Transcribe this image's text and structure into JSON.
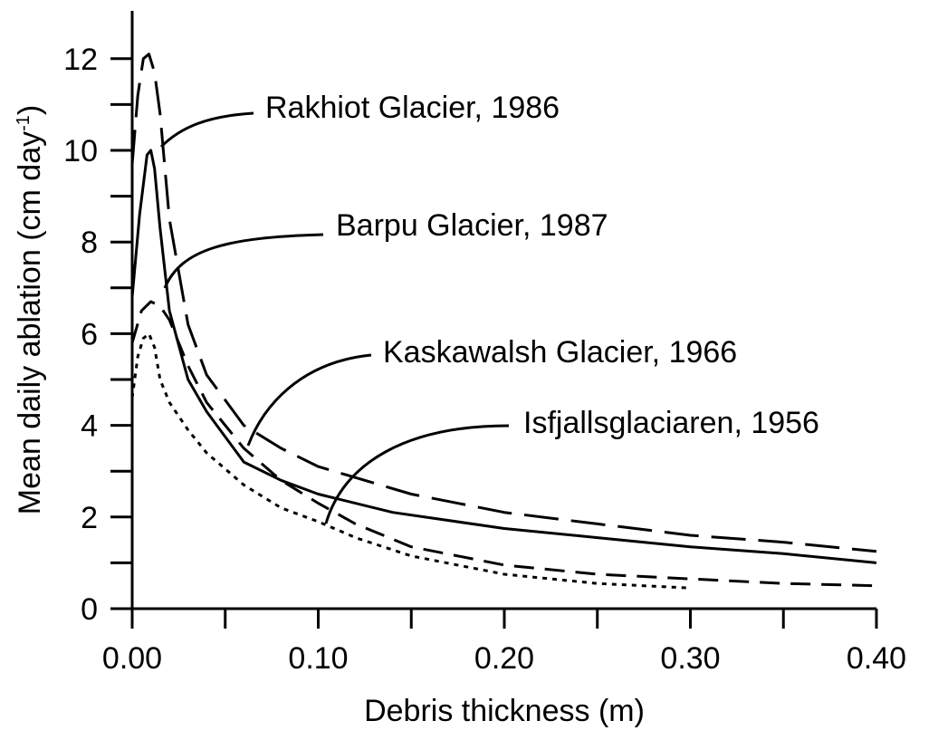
{
  "chart_data": {
    "type": "line",
    "xlabel": "Debris thickness (m)",
    "ylabel": "Mean daily ablation (cm day",
    "ylabel_sup": "-1",
    "ylabel_close": ")",
    "xlim": [
      0,
      0.4
    ],
    "ylim": [
      0,
      12.5
    ],
    "x_ticks": [
      0.0,
      0.1,
      0.2,
      0.3,
      0.4
    ],
    "x_tick_labels": [
      "0.00",
      "0.10",
      "0.20",
      "0.30",
      "0.40"
    ],
    "x_minor_ticks": [
      0.05,
      0.15,
      0.25,
      0.35
    ],
    "y_ticks": [
      0,
      2,
      4,
      6,
      8,
      10,
      12
    ],
    "y_tick_labels": [
      "0",
      "2",
      "4",
      "6",
      "8",
      "10",
      "12"
    ],
    "grid": false,
    "legend": "none",
    "series": [
      {
        "name": "Rakhiot Glacier, 1986",
        "style": "long-dash",
        "x": [
          0.0,
          0.003,
          0.006,
          0.009,
          0.012,
          0.015,
          0.02,
          0.03,
          0.04,
          0.06,
          0.08,
          0.1,
          0.15,
          0.2,
          0.25,
          0.3,
          0.35,
          0.4
        ],
        "y": [
          9.7,
          11.2,
          12.0,
          12.1,
          11.7,
          10.8,
          8.5,
          6.2,
          5.1,
          4.0,
          3.5,
          3.1,
          2.5,
          2.1,
          1.85,
          1.6,
          1.45,
          1.25
        ]
      },
      {
        "name": "Barpu Glacier, 1987",
        "style": "solid",
        "x": [
          0.0,
          0.004,
          0.008,
          0.01,
          0.012,
          0.015,
          0.02,
          0.03,
          0.04,
          0.06,
          0.08,
          0.1,
          0.14,
          0.2,
          0.25,
          0.3,
          0.35,
          0.4
        ],
        "y": [
          6.8,
          8.6,
          9.9,
          10.0,
          9.6,
          8.3,
          6.5,
          5.0,
          4.3,
          3.2,
          2.8,
          2.5,
          2.1,
          1.75,
          1.55,
          1.35,
          1.2,
          1.0
        ]
      },
      {
        "name": "Kaskawalsh Glacier, 1966",
        "style": "medium-dash",
        "x": [
          0.0,
          0.005,
          0.01,
          0.015,
          0.02,
          0.03,
          0.04,
          0.06,
          0.08,
          0.1,
          0.12,
          0.15,
          0.2,
          0.25,
          0.3,
          0.35,
          0.4
        ],
        "y": [
          5.8,
          6.5,
          6.7,
          6.6,
          6.3,
          5.3,
          4.5,
          3.5,
          2.8,
          2.3,
          1.85,
          1.35,
          0.95,
          0.75,
          0.65,
          0.55,
          0.5
        ]
      },
      {
        "name": "Isfjallsglaciaren, 1956",
        "style": "dotted",
        "x": [
          0.0,
          0.003,
          0.006,
          0.009,
          0.012,
          0.015,
          0.02,
          0.03,
          0.04,
          0.06,
          0.08,
          0.1,
          0.12,
          0.15,
          0.2,
          0.25,
          0.3
        ],
        "y": [
          4.6,
          5.5,
          5.9,
          6.0,
          5.7,
          5.0,
          4.5,
          3.9,
          3.4,
          2.7,
          2.2,
          1.9,
          1.55,
          1.15,
          0.75,
          0.55,
          0.45
        ]
      }
    ],
    "annotations": [
      {
        "text": "Rakhiot Glacier, 1986",
        "series": 0
      },
      {
        "text": "Barpu Glacier, 1987",
        "series": 1
      },
      {
        "text": "Kaskawalsh Glacier, 1966",
        "series": 2
      },
      {
        "text": "Isfjallsglaciaren, 1956",
        "series": 3
      }
    ]
  }
}
